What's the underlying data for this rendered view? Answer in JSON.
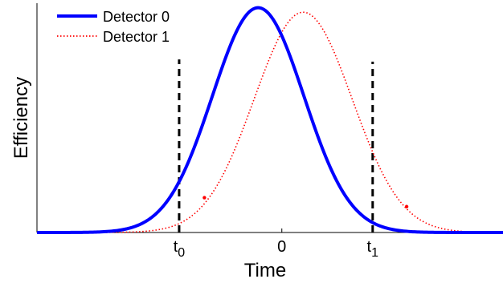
{
  "chart_data": {
    "type": "line",
    "title": "",
    "xlabel": "Time",
    "ylabel": "Efficiency",
    "xlim": [
      -3.1,
      2.8
    ],
    "ylim": [
      0,
      1.02
    ],
    "x_ticks": [
      {
        "value": -1.3,
        "base": "t",
        "sub": "0"
      },
      {
        "value": 0,
        "base": "0",
        "sub": ""
      },
      {
        "value": 1.15,
        "base": "t",
        "sub": "1"
      }
    ],
    "legend": {
      "placement": "top-left"
    },
    "series": [
      {
        "name": "Detector 0",
        "style": "solid",
        "color": "#0000ff",
        "curve": "gaussian",
        "peak_x": -0.3,
        "peak_y": 1.0,
        "sigma": 0.58
      },
      {
        "name": "Detector 1",
        "style": "dotted",
        "color": "#ff0000",
        "curve": "gaussian",
        "peak_x": 0.27,
        "peak_y": 0.98,
        "sigma": 0.62
      }
    ],
    "vlines": [
      {
        "x": -1.3,
        "style": "dashed",
        "color": "#000000",
        "y_top": 0.77
      },
      {
        "x": 1.15,
        "style": "dashed",
        "color": "#000000",
        "y_top": 0.76
      }
    ],
    "markers": [
      {
        "x": -0.98,
        "y": 0.155,
        "color": "#ff0000"
      },
      {
        "x": 1.58,
        "y": 0.115,
        "color": "#ff0000"
      }
    ]
  }
}
